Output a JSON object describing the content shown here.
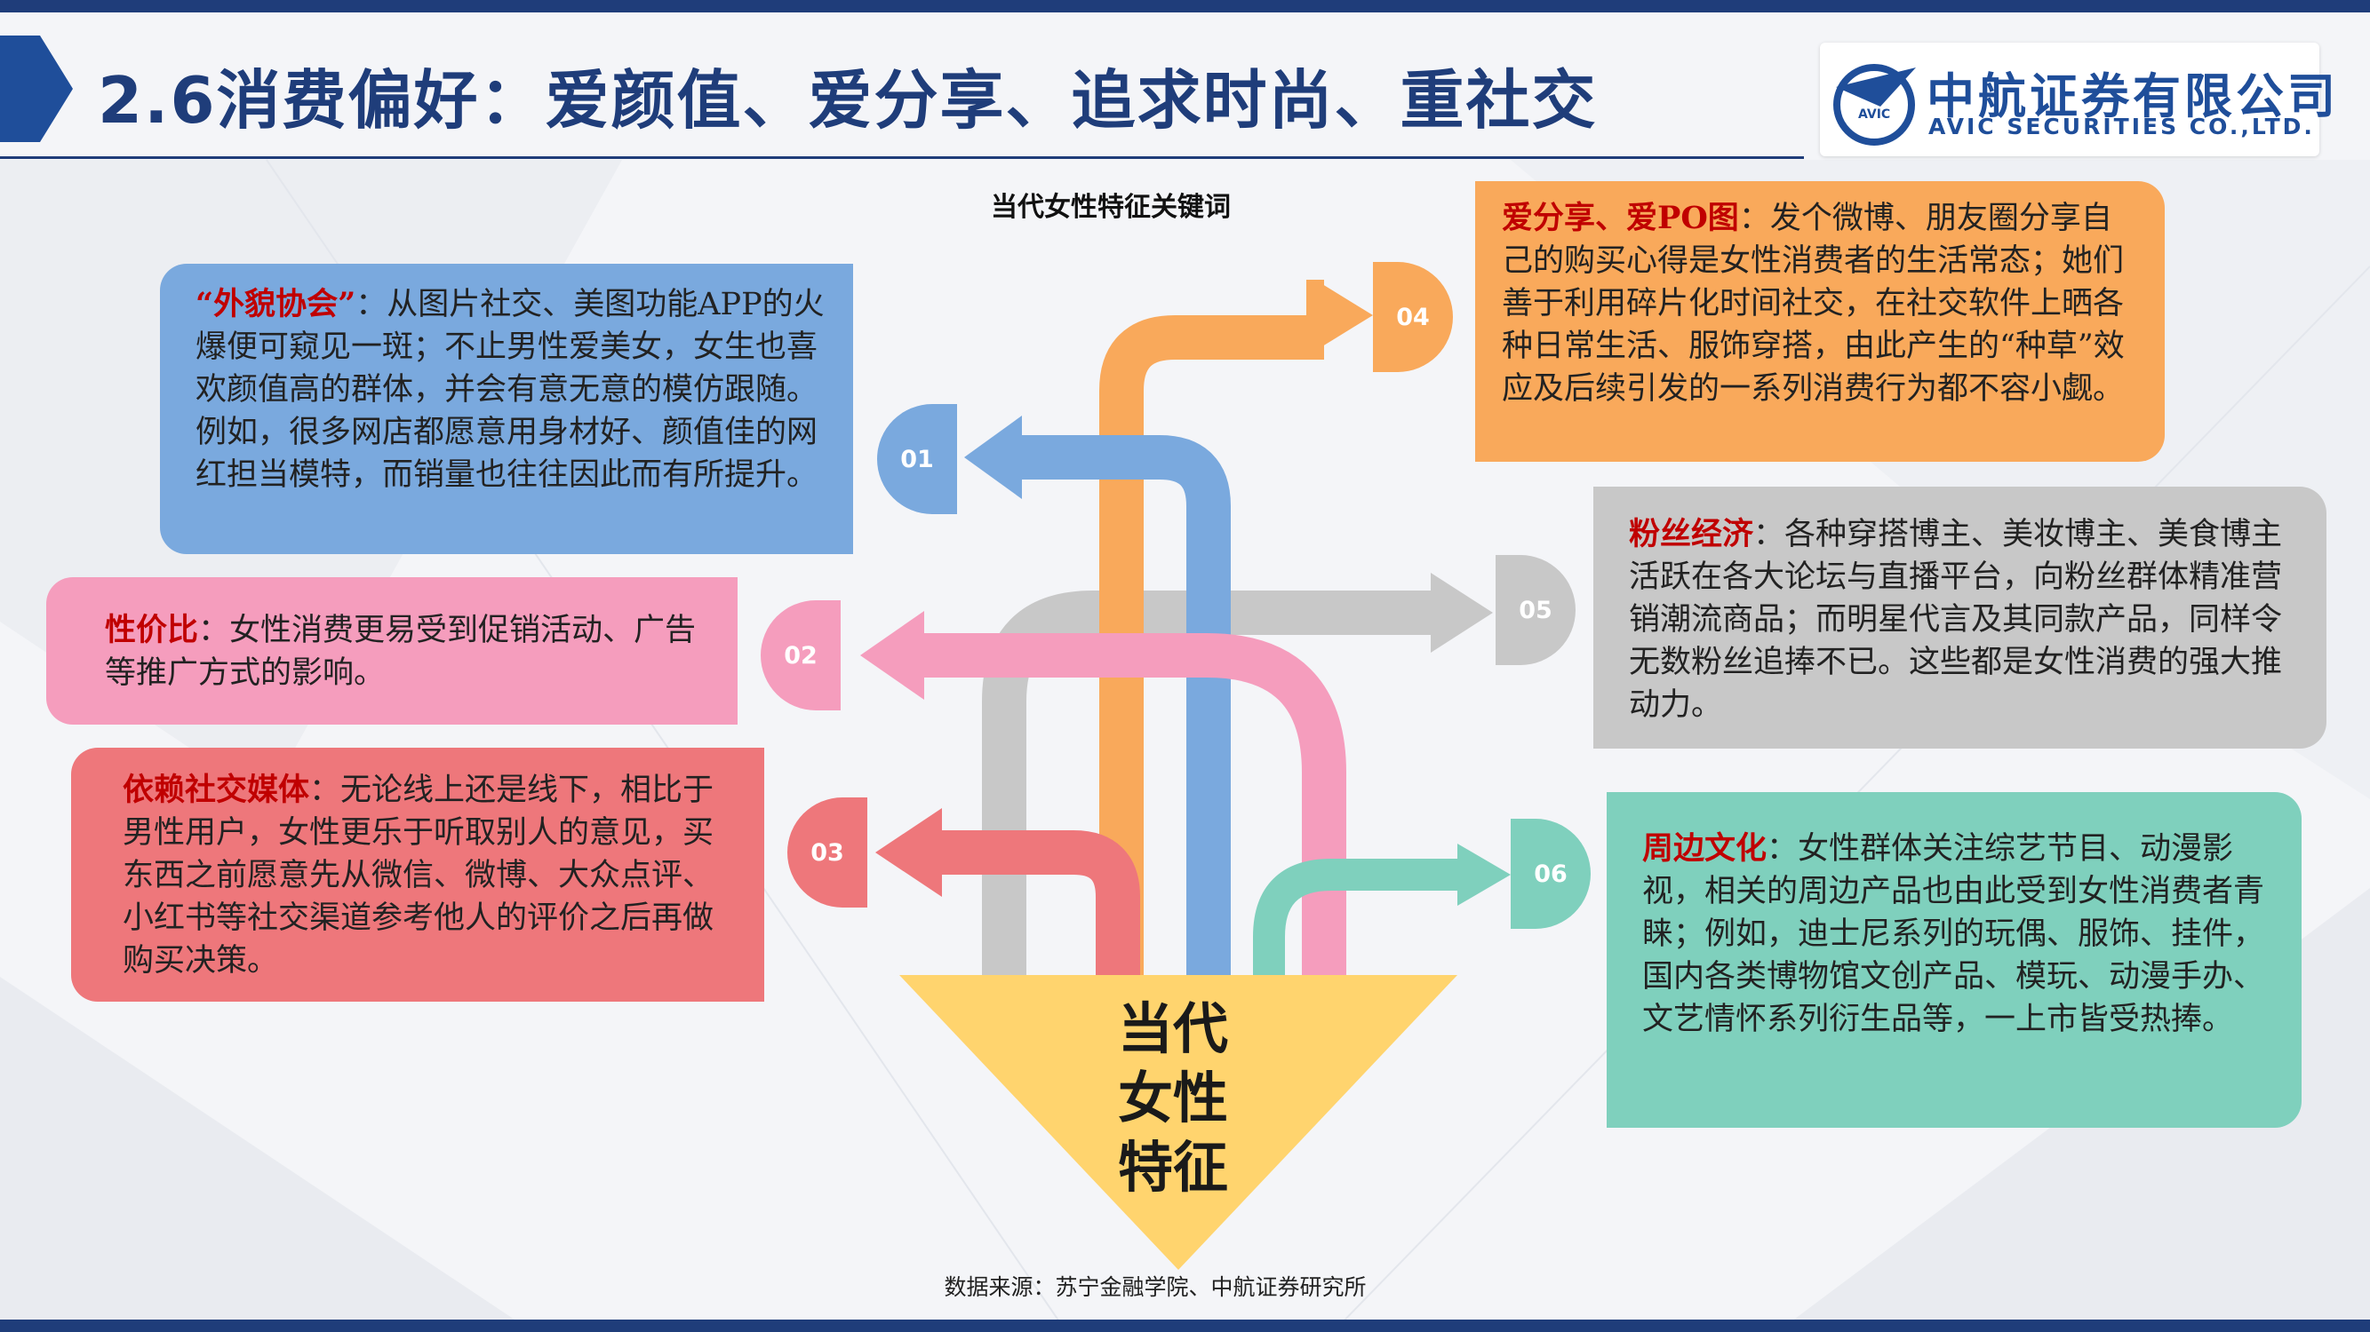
{
  "slide": {
    "title": "2.6消费偏好：爱颜值、爱分享、追求时尚、重社交"
  },
  "logo": {
    "name_cn": "中航证券有限公司",
    "name_en": "AVIC SECURITIES CO.,LTD.",
    "mark_text": "AVIC"
  },
  "diagram": {
    "title": "当代女性特征关键词",
    "center_label": [
      "当代",
      "女性",
      "特征"
    ],
    "items": [
      {
        "badge": "01",
        "color": "#7aa9de",
        "keyword": "“外貌协会”",
        "sep": "：",
        "text": "从图片社交、美图功能APP的火爆便可窥见一斑；不止男性爱美女，女生也喜欢颜值高的群体，并会有意无意的模仿跟随。例如，很多网店都愿意用身材好、颜值佳的网红担当模特，而销量也往往因此而有所提升。"
      },
      {
        "badge": "02",
        "color": "#f59dbd",
        "keyword": "性价比",
        "sep": "：",
        "text": "女性消费更易受到促销活动、广告等推广方式的影响。"
      },
      {
        "badge": "03",
        "color": "#ee777b",
        "keyword": "依赖社交媒体",
        "sep": "：",
        "text": "无论线上还是线下，相比于男性用户，女性更乐于听取别人的意见，买东西之前愿意先从微信、微博、大众点评、小红书等社交渠道参考他人的评价之后再做购买决策。"
      },
      {
        "badge": "04",
        "color": "#f9a95b",
        "keyword": "爱分享、爱PO图",
        "sep": "：",
        "text": "发个微博、朋友圈分享自己的购买心得是女性消费者的生活常态；她们善于利用碎片化时间社交，在社交软件上晒各种日常生活、服饰穿搭，由此产生的“种草”效应及后续引发的一系列消费行为都不容小觑。"
      },
      {
        "badge": "05",
        "color": "#c8c8c8",
        "keyword": "粉丝经济",
        "sep": "：",
        "text": "各种穿搭博主、美妆博主、美食博主活跃在各大论坛与直播平台，向粉丝群体精准营销潮流商品；而明星代言及其同款产品，同样令无数粉丝追捧不已。这些都是女性消费的强大推动力。"
      },
      {
        "badge": "06",
        "color": "#7fd0bd",
        "keyword": "周边文化",
        "sep": "：",
        "text": "女性群体关注综艺节目、动漫影视，相关的周边产品也由此受到女性消费者青睐；例如，迪士尼系列的玩偶、服饰、挂件，国内各类博物馆文创产品、模玩、动漫手办、文艺情怀系列衍生品等，一上市皆受热捧。"
      }
    ],
    "triangle_color": "#ffd46e"
  },
  "source": "数据来源：苏宁金融学院、中航证券研究所"
}
